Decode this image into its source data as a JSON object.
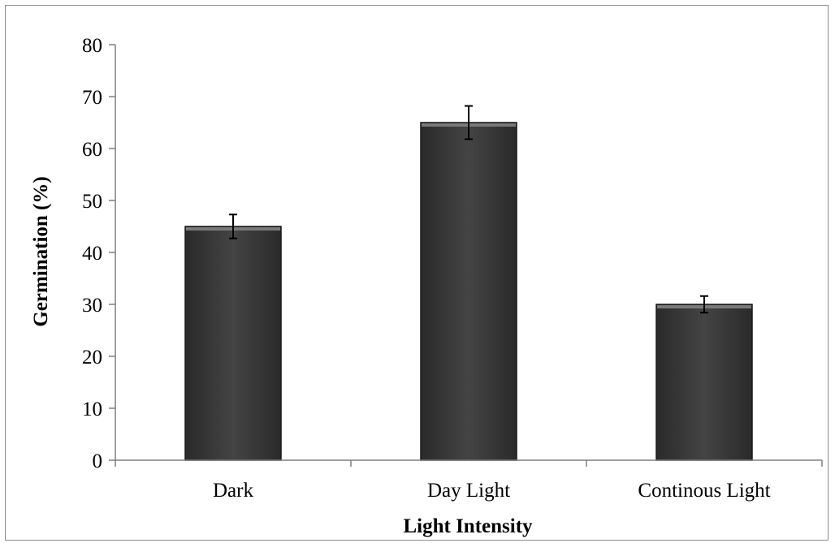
{
  "chart_data": {
    "type": "bar",
    "categories": [
      "Dark",
      "Day Light",
      "Continous Light"
    ],
    "values": [
      45,
      65,
      30
    ],
    "errors": [
      2.3,
      3.2,
      1.6
    ],
    "xlabel": "Light Intensity",
    "ylabel": "Germination (%)",
    "ylim": [
      0,
      80
    ],
    "yticks": [
      "0",
      "10",
      "20",
      "30",
      "40",
      "50",
      "60",
      "70",
      "80"
    ],
    "grid": false,
    "legend": "none",
    "colors": {
      "bar": "#3b3b3b",
      "bar_edge": "#1a1a1a",
      "bar_highlight": "#7a7a7a",
      "axis": "#7f7f7f",
      "frame": "#8c8c8c",
      "text": "#000000"
    }
  }
}
